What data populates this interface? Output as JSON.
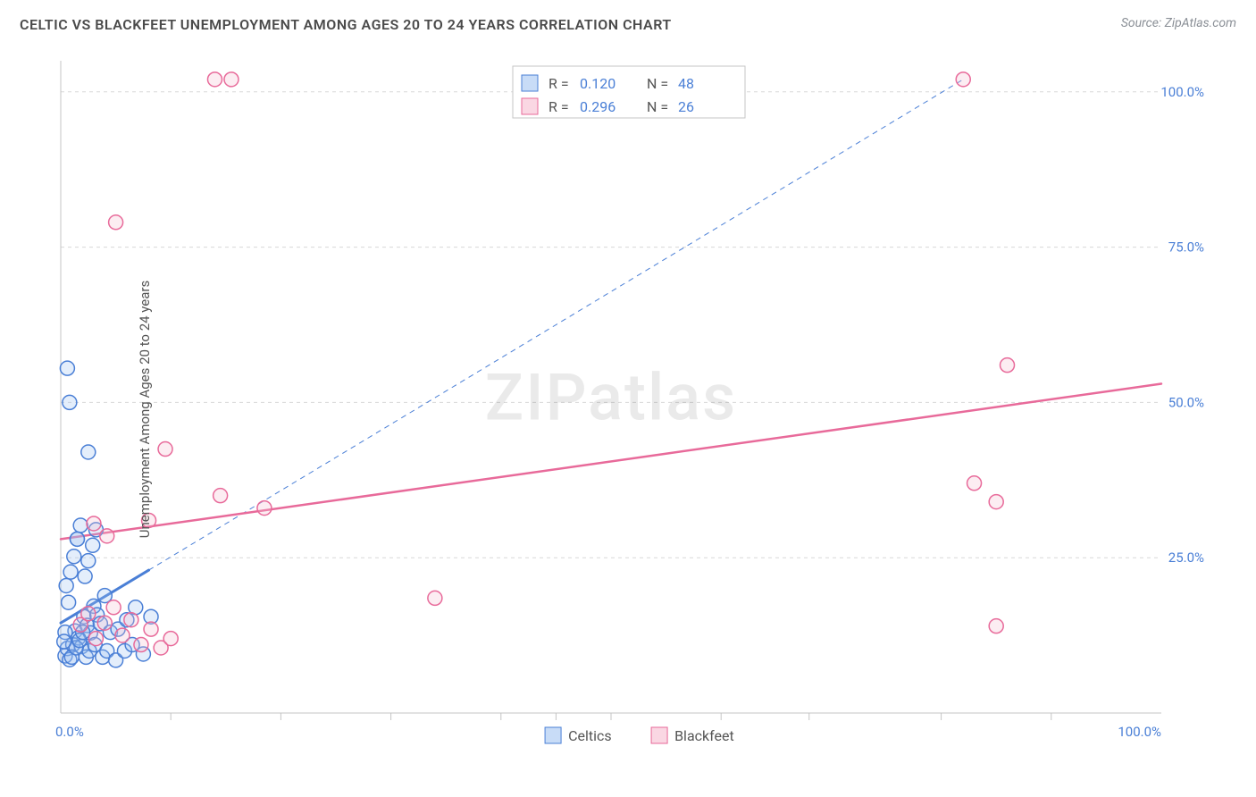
{
  "title": "CELTIC VS BLACKFEET UNEMPLOYMENT AMONG AGES 20 TO 24 YEARS CORRELATION CHART",
  "source_label": "Source: ZipAtlas.com",
  "watermark": "ZIPatlas",
  "ylabel": "Unemployment Among Ages 20 to 24 years",
  "chart": {
    "type": "scatter",
    "background_color": "#ffffff",
    "grid_color": "#d8d8d8",
    "axis_color": "#c4c4c4",
    "tick_label_color": "#4a7fd6",
    "xlim": [
      0,
      100
    ],
    "ylim": [
      0,
      105
    ],
    "xtick_labels": [
      "0.0%",
      "100.0%"
    ],
    "xtick_positions": [
      0,
      100
    ],
    "xtick_minor": [
      10,
      20,
      30,
      40,
      45,
      50,
      60,
      68,
      80,
      90
    ],
    "ytick_labels": [
      "25.0%",
      "50.0%",
      "75.0%",
      "100.0%"
    ],
    "ytick_positions": [
      25,
      50,
      75,
      100
    ],
    "marker_radius": 8,
    "marker_stroke_width": 1.5,
    "marker_fill_opacity": 0.28,
    "series": [
      {
        "name": "Celtics",
        "color": "#4a7fd6",
        "fill": "#9ec1f0",
        "r_value": "0.120",
        "n_value": "48",
        "points": [
          [
            0.4,
            9.2
          ],
          [
            0.6,
            10.4
          ],
          [
            0.8,
            8.6
          ],
          [
            1.1,
            11.0
          ],
          [
            1.3,
            13.2
          ],
          [
            1.6,
            12.1
          ],
          [
            1.9,
            10.7
          ],
          [
            2.1,
            15.5
          ],
          [
            2.4,
            14.1
          ],
          [
            2.7,
            12.9
          ],
          [
            3.0,
            17.2
          ],
          [
            3.3,
            15.8
          ],
          [
            3.6,
            14.4
          ],
          [
            4.0,
            18.9
          ],
          [
            0.5,
            20.5
          ],
          [
            0.9,
            22.7
          ],
          [
            1.2,
            25.2
          ],
          [
            1.5,
            28.0
          ],
          [
            1.5,
            28.0
          ],
          [
            1.8,
            30.2
          ],
          [
            2.2,
            22.0
          ],
          [
            2.5,
            24.5
          ],
          [
            2.9,
            27.0
          ],
          [
            3.2,
            29.5
          ],
          [
            0.7,
            17.8
          ],
          [
            4.5,
            13.0
          ],
          [
            5.2,
            13.5
          ],
          [
            6.0,
            15.0
          ],
          [
            6.8,
            17.0
          ],
          [
            7.5,
            9.5
          ],
          [
            8.2,
            15.5
          ],
          [
            3.8,
            9.0
          ],
          [
            4.2,
            10.0
          ],
          [
            5.0,
            8.5
          ],
          [
            5.8,
            10.0
          ],
          [
            6.5,
            11.0
          ],
          [
            0.6,
            55.5
          ],
          [
            0.8,
            50.0
          ],
          [
            2.5,
            42.0
          ],
          [
            0.4,
            13.0
          ],
          [
            1.0,
            9.0
          ],
          [
            1.4,
            10.5
          ],
          [
            1.7,
            11.7
          ],
          [
            2.0,
            13.0
          ],
          [
            0.3,
            11.5
          ],
          [
            2.3,
            9.0
          ],
          [
            2.6,
            10.0
          ],
          [
            3.1,
            11.0
          ]
        ],
        "trend_solid": {
          "x1": 0,
          "y1": 14.5,
          "x2": 8,
          "y2": 23.0,
          "width": 3
        },
        "trend_dashed": {
          "x1": 8,
          "y1": 23.0,
          "x2": 82,
          "y2": 102.0,
          "width": 1,
          "dash": "6 5"
        }
      },
      {
        "name": "Blackfeet",
        "color": "#e86a9a",
        "fill": "#f6bed1",
        "r_value": "0.296",
        "n_value": "26",
        "points": [
          [
            1.8,
            14.2
          ],
          [
            2.5,
            16.0
          ],
          [
            3.2,
            12.0
          ],
          [
            4.0,
            14.5
          ],
          [
            4.8,
            17.0
          ],
          [
            5.6,
            12.5
          ],
          [
            6.4,
            15.0
          ],
          [
            7.3,
            11.0
          ],
          [
            8.2,
            13.5
          ],
          [
            9.1,
            10.5
          ],
          [
            10.0,
            12.0
          ],
          [
            3.0,
            30.5
          ],
          [
            4.2,
            28.5
          ],
          [
            8.0,
            31.0
          ],
          [
            14.5,
            35.0
          ],
          [
            18.5,
            33.0
          ],
          [
            9.5,
            42.5
          ],
          [
            5.0,
            79.0
          ],
          [
            14.0,
            102.0
          ],
          [
            15.5,
            102.0
          ],
          [
            34.0,
            18.5
          ],
          [
            82.0,
            102.0
          ],
          [
            86.0,
            56.0
          ],
          [
            83.0,
            37.0
          ],
          [
            85.0,
            34.0
          ],
          [
            85.0,
            14.0
          ]
        ],
        "trend_solid": {
          "x1": 0,
          "y1": 28.0,
          "x2": 100,
          "y2": 53.0,
          "width": 2.5
        }
      }
    ],
    "stats_box": {
      "bg": "#ffffff",
      "border": "#c6c6c6",
      "rows": [
        {
          "swatch_fill": "#c8dcf7",
          "swatch_stroke": "#4a7fd6",
          "r_label": "R =",
          "r_val": "0.120",
          "n_label": "N =",
          "n_val": "48"
        },
        {
          "swatch_fill": "#fad7e3",
          "swatch_stroke": "#e86a9a",
          "r_label": "R =",
          "r_val": "0.296",
          "n_label": "N =",
          "n_val": "26"
        }
      ]
    },
    "bottom_legend": [
      {
        "swatch_fill": "#c8dcf7",
        "swatch_stroke": "#4a7fd6",
        "label": "Celtics"
      },
      {
        "swatch_fill": "#fad7e3",
        "swatch_stroke": "#e86a9a",
        "label": "Blackfeet"
      }
    ]
  }
}
